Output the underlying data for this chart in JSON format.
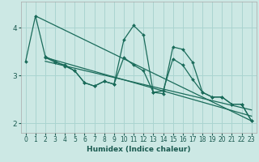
{
  "title": "",
  "xlabel": "Humidex (Indice chaleur)",
  "ylabel": "",
  "background_color": "#cce8e4",
  "grid_color": "#aad4d0",
  "line_color": "#1a6b5a",
  "xlim": [
    -0.5,
    23.5
  ],
  "ylim": [
    1.8,
    4.55
  ],
  "yticks": [
    2,
    3,
    4
  ],
  "xticks": [
    0,
    1,
    2,
    3,
    4,
    5,
    6,
    7,
    8,
    9,
    10,
    11,
    12,
    13,
    14,
    15,
    16,
    17,
    18,
    19,
    20,
    21,
    22,
    23
  ],
  "series1_x": [
    0,
    1,
    2,
    3,
    4,
    5,
    6,
    7,
    8,
    9,
    10,
    11,
    12,
    13,
    14,
    15,
    16,
    17,
    18,
    19,
    20,
    21,
    22,
    23
  ],
  "series1_y": [
    3.3,
    4.25,
    3.4,
    3.3,
    3.2,
    3.1,
    2.85,
    2.78,
    2.88,
    2.82,
    3.75,
    4.05,
    3.85,
    2.65,
    2.62,
    3.6,
    3.55,
    3.28,
    2.65,
    2.55,
    2.55,
    2.4,
    2.4,
    2.05
  ],
  "series2_x": [
    2,
    3,
    4,
    5,
    6,
    7,
    8,
    9,
    10,
    11,
    12,
    13,
    14,
    15,
    16,
    17,
    18,
    19,
    20,
    21,
    22,
    23
  ],
  "series2_y": [
    3.38,
    3.28,
    3.22,
    3.1,
    2.85,
    2.78,
    2.88,
    2.82,
    3.38,
    3.22,
    3.1,
    2.65,
    2.68,
    3.35,
    3.22,
    2.92,
    2.65,
    2.55,
    2.55,
    2.4,
    2.4,
    2.05
  ],
  "trend1_x": [
    1,
    23
  ],
  "trend1_y": [
    4.25,
    2.05
  ],
  "trend2_x": [
    2,
    23
  ],
  "trend2_y": [
    3.38,
    2.15
  ],
  "trend3_x": [
    2,
    23
  ],
  "trend3_y": [
    3.3,
    2.28
  ]
}
